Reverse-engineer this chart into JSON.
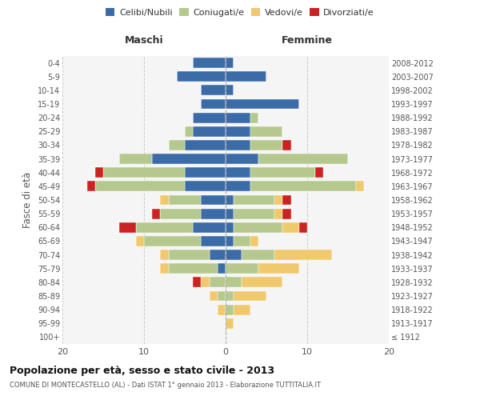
{
  "age_groups": [
    "100+",
    "95-99",
    "90-94",
    "85-89",
    "80-84",
    "75-79",
    "70-74",
    "65-69",
    "60-64",
    "55-59",
    "50-54",
    "45-49",
    "40-44",
    "35-39",
    "30-34",
    "25-29",
    "20-24",
    "15-19",
    "10-14",
    "5-9",
    "0-4"
  ],
  "birth_years": [
    "≤ 1912",
    "1913-1917",
    "1918-1922",
    "1923-1927",
    "1928-1932",
    "1933-1937",
    "1938-1942",
    "1943-1947",
    "1948-1952",
    "1953-1957",
    "1958-1962",
    "1963-1967",
    "1968-1972",
    "1973-1977",
    "1978-1982",
    "1983-1987",
    "1988-1992",
    "1993-1997",
    "1998-2002",
    "2003-2007",
    "2008-2012"
  ],
  "colors": {
    "celibi": "#3b6ca8",
    "coniugati": "#b5c98e",
    "vedovi": "#f0c96c",
    "divorziati": "#cc2222"
  },
  "maschi": {
    "celibi": [
      0,
      0,
      0,
      0,
      0,
      1,
      2,
      3,
      4,
      3,
      3,
      5,
      5,
      9,
      5,
      4,
      4,
      3,
      3,
      6,
      4
    ],
    "coniugati": [
      0,
      0,
      0,
      1,
      2,
      6,
      5,
      7,
      7,
      5,
      4,
      11,
      10,
      4,
      2,
      1,
      0,
      0,
      0,
      0,
      0
    ],
    "vedovi": [
      0,
      0,
      1,
      1,
      1,
      1,
      1,
      1,
      0,
      0,
      1,
      0,
      0,
      0,
      0,
      0,
      0,
      0,
      0,
      0,
      0
    ],
    "divorziati": [
      0,
      0,
      0,
      0,
      1,
      0,
      0,
      0,
      2,
      1,
      0,
      1,
      1,
      0,
      0,
      0,
      0,
      0,
      0,
      0,
      0
    ]
  },
  "femmine": {
    "celibi": [
      0,
      0,
      0,
      0,
      0,
      0,
      2,
      1,
      1,
      1,
      1,
      3,
      3,
      4,
      3,
      3,
      3,
      9,
      1,
      5,
      1
    ],
    "coniugati": [
      0,
      0,
      1,
      1,
      2,
      4,
      4,
      2,
      6,
      5,
      5,
      13,
      8,
      11,
      4,
      4,
      1,
      0,
      0,
      0,
      0
    ],
    "vedovi": [
      0,
      1,
      2,
      4,
      5,
      5,
      7,
      1,
      2,
      1,
      1,
      1,
      0,
      0,
      0,
      0,
      0,
      0,
      0,
      0,
      0
    ],
    "divorziati": [
      0,
      0,
      0,
      0,
      0,
      0,
      0,
      0,
      1,
      1,
      1,
      0,
      1,
      0,
      1,
      0,
      0,
      0,
      0,
      0,
      0
    ]
  },
  "xlim": 20,
  "title": "Popolazione per età, sesso e stato civile - 2013",
  "subtitle": "COMUNE DI MONTECASTELLO (AL) - Dati ISTAT 1° gennaio 2013 - Elaborazione TUTTITALIA.IT",
  "ylabel_left": "Fasce di età",
  "xlabel_left": "Maschi",
  "xlabel_right": "Femmine",
  "bg_color": "#f5f5f5"
}
